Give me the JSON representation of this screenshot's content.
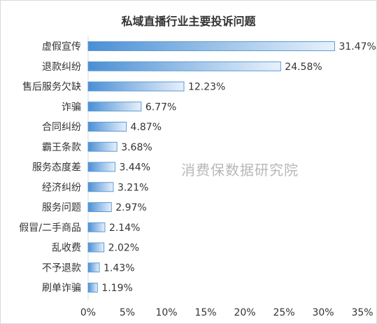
{
  "chart_data": {
    "type": "bar",
    "orientation": "horizontal",
    "title": "私域直播行业主要投诉问题",
    "watermark": "消费保数据研究院",
    "categories": [
      "虚假宣传",
      "退款纠纷",
      "售后服务欠缺",
      "诈骗",
      "合同纠纷",
      "霸王条款",
      "服务态度差",
      "经济纠纷",
      "服务问题",
      "假冒/二手商品",
      "乱收费",
      "不予退款",
      "刷单诈骗"
    ],
    "values": [
      31.47,
      24.58,
      12.23,
      6.77,
      4.87,
      3.68,
      3.44,
      3.21,
      2.97,
      2.14,
      2.02,
      1.43,
      1.19
    ],
    "value_labels": [
      "31.47%",
      "24.58%",
      "12.23%",
      "6.77%",
      "4.87%",
      "3.68%",
      "3.44%",
      "3.21%",
      "2.97%",
      "2.14%",
      "2.02%",
      "1.43%",
      "1.19%"
    ],
    "xlim": [
      0,
      35
    ],
    "x_ticks": [
      0,
      5,
      10,
      15,
      20,
      25,
      30,
      35
    ],
    "x_tick_labels": [
      "0%",
      "5%",
      "10%",
      "15%",
      "20%",
      "25%",
      "30%",
      "35%"
    ],
    "grid": false,
    "legend": "none",
    "bar_color_start": "#4a8fd4",
    "bar_color_end": "#e8f1fb",
    "bar_border": "#5b9bd5"
  }
}
